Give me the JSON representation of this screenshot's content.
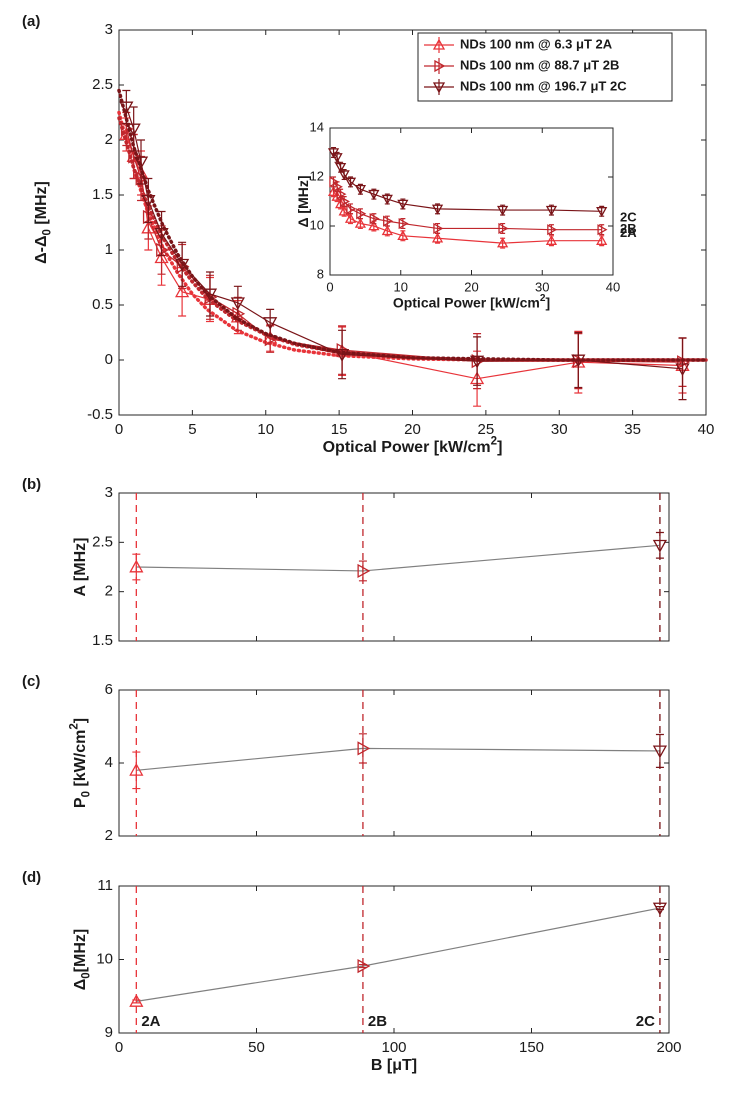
{
  "chart_data": [
    {
      "type": "line",
      "panel_label": "(a)",
      "xlabel": [
        {
          "text": "Optical Power [kW/cm"
        },
        {
          "text": "2",
          "sup": true
        },
        {
          "text": "]"
        }
      ],
      "ylabel": [
        {
          "text": "Δ-Δ"
        },
        {
          "text": "0",
          "sub": true
        },
        {
          "text": " [MHz]"
        }
      ],
      "xlim": [
        0,
        40
      ],
      "xticks": [
        0,
        5,
        10,
        15,
        20,
        25,
        30,
        35,
        40
      ],
      "ylim": [
        -0.5,
        3
      ],
      "yticks": [
        -0.5,
        0,
        0.5,
        1,
        1.5,
        2,
        2.5,
        3
      ],
      "legend": "upper right",
      "x": [
        0.5,
        1,
        1.5,
        2,
        2.9,
        4.3,
        6.2,
        8.1,
        10.3,
        15.2,
        24.4,
        31.3,
        38.4
      ],
      "fit_x": [
        0,
        1,
        2,
        3,
        4,
        5,
        6,
        8,
        10,
        12,
        15,
        20,
        25,
        30,
        35,
        40
      ],
      "series": [
        {
          "name": "NDs 100 nm @ 6.3 μT 2A",
          "color": "#e8343a",
          "marker": "^",
          "values": [
            2.05,
            1.85,
            1.7,
            1.2,
            0.93,
            0.62,
            0.55,
            0.39,
            0.2,
            0.08,
            -0.17,
            -0.02,
            -0.05
          ],
          "errors": [
            0.15,
            0.2,
            0.2,
            0.2,
            0.25,
            0.22,
            0.2,
            0.15,
            0.12,
            0.22,
            0.25,
            0.28,
            0.25
          ],
          "fit": [
            2.25,
            1.74,
            1.33,
            1.02,
            0.79,
            0.6,
            0.46,
            0.27,
            0.16,
            0.09,
            0.04,
            0.01,
            0,
            0,
            0,
            0
          ]
        },
        {
          "name": "NDs 100 nm @ 88.7 μT 2B",
          "color": "#c0272d",
          "marker": ">",
          "values": [
            2.1,
            1.85,
            1.65,
            1.3,
            1.0,
            0.85,
            0.57,
            0.42,
            0.19,
            0.09,
            -0.01,
            -0.01,
            -0.02
          ],
          "errors": [
            0.15,
            0.2,
            0.2,
            0.2,
            0.22,
            0.2,
            0.2,
            0.15,
            0.12,
            0.22,
            0.25,
            0.25,
            0.22
          ],
          "fit": [
            2.2,
            1.75,
            1.39,
            1.11,
            0.89,
            0.71,
            0.56,
            0.36,
            0.23,
            0.14,
            0.07,
            0.02,
            0,
            0,
            0,
            0
          ]
        },
        {
          "name": "NDs 100 nm @ 196.7 μT 2C",
          "color": "#7a1418",
          "marker": "v",
          "values": [
            2.3,
            2.1,
            1.8,
            1.45,
            1.15,
            0.87,
            0.6,
            0.52,
            0.34,
            0.05,
            -0.01,
            0.0,
            -0.08
          ],
          "errors": [
            0.15,
            0.2,
            0.2,
            0.2,
            0.2,
            0.2,
            0.2,
            0.15,
            0.12,
            0.22,
            0.22,
            0.25,
            0.28
          ],
          "fit": [
            2.45,
            1.94,
            1.54,
            1.22,
            0.96,
            0.76,
            0.6,
            0.38,
            0.24,
            0.15,
            0.07,
            0.02,
            0.01,
            0,
            0,
            0
          ]
        }
      ]
    },
    {
      "type": "line",
      "xlabel": [
        {
          "text": "Optical Power [kW/cm"
        },
        {
          "text": "2",
          "sup": true
        },
        {
          "text": "]"
        }
      ],
      "ylabel": [
        {
          "text": "Δ [MHz]"
        }
      ],
      "xlim": [
        0,
        40
      ],
      "xticks": [
        0,
        10,
        20,
        30,
        40
      ],
      "ylim": [
        8,
        14
      ],
      "yticks": [
        8,
        10,
        12,
        14
      ],
      "end_labels": true,
      "x": [
        0.5,
        1,
        1.5,
        2,
        2.9,
        4.3,
        6.2,
        8.1,
        10.3,
        15.2,
        24.4,
        31.3,
        38.4
      ],
      "series": [
        {
          "name": "2A",
          "color": "#e8343a",
          "marker": "^",
          "values": [
            11.4,
            11.2,
            10.9,
            10.6,
            10.3,
            10.1,
            10.0,
            9.8,
            9.6,
            9.5,
            9.3,
            9.4,
            9.4
          ],
          "errors": [
            0.2,
            0.2,
            0.2,
            0.2,
            0.2,
            0.2,
            0.2,
            0.2,
            0.2,
            0.2,
            0.2,
            0.2,
            0.2
          ]
        },
        {
          "name": "2B",
          "color": "#c0272d",
          "marker": ">",
          "values": [
            11.8,
            11.6,
            11.3,
            11.0,
            10.7,
            10.5,
            10.3,
            10.2,
            10.1,
            9.9,
            9.9,
            9.85,
            9.85
          ],
          "errors": [
            0.2,
            0.2,
            0.2,
            0.2,
            0.2,
            0.2,
            0.2,
            0.2,
            0.2,
            0.2,
            0.2,
            0.2,
            0.2
          ]
        },
        {
          "name": "2C",
          "color": "#7a1418",
          "marker": "v",
          "values": [
            13.0,
            12.8,
            12.4,
            12.1,
            11.8,
            11.5,
            11.3,
            11.1,
            10.9,
            10.7,
            10.65,
            10.65,
            10.6
          ],
          "errors": [
            0.2,
            0.2,
            0.2,
            0.2,
            0.2,
            0.2,
            0.2,
            0.2,
            0.2,
            0.2,
            0.2,
            0.2,
            0.2
          ]
        }
      ]
    },
    {
      "type": "line",
      "panel_label": "(b)",
      "ylabel": [
        {
          "text": "A [MHz]"
        }
      ],
      "xlim": [
        0,
        200
      ],
      "xticks": [
        0,
        50,
        100,
        150,
        200
      ],
      "xtick_labels": false,
      "ylim": [
        1.5,
        3
      ],
      "yticks": [
        1.5,
        2,
        2.5,
        3
      ],
      "vlines": true,
      "x": [
        6.3,
        88.7,
        196.7
      ],
      "series": [
        {
          "color": "#808080",
          "markers": [
            "^",
            ">",
            "v"
          ],
          "marker_colors": [
            "#e8343a",
            "#c0272d",
            "#7a1418"
          ],
          "values": [
            2.25,
            2.21,
            2.47
          ],
          "errors": [
            0.13,
            0.1,
            0.13
          ]
        }
      ]
    },
    {
      "type": "line",
      "panel_label": "(c)",
      "ylabel": [
        {
          "text": "P"
        },
        {
          "text": "0",
          "sub": true
        },
        {
          "text": " [kW/cm"
        },
        {
          "text": "2",
          "sup": true
        },
        {
          "text": "]"
        }
      ],
      "xlim": [
        0,
        200
      ],
      "xticks": [
        0,
        50,
        100,
        150,
        200
      ],
      "xtick_labels": false,
      "ylim": [
        2,
        6
      ],
      "yticks": [
        2,
        4,
        6
      ],
      "vlines": true,
      "x": [
        6.3,
        88.7,
        196.7
      ],
      "series": [
        {
          "color": "#808080",
          "markers": [
            "^",
            ">",
            "v"
          ],
          "marker_colors": [
            "#e8343a",
            "#c0272d",
            "#7a1418"
          ],
          "values": [
            3.8,
            4.4,
            4.33
          ],
          "errors": [
            0.5,
            0.4,
            0.45
          ]
        }
      ]
    },
    {
      "type": "line",
      "panel_label": "(d)",
      "xlabel": [
        {
          "text": "B [μT]"
        }
      ],
      "ylabel": [
        {
          "text": "Δ"
        },
        {
          "text": "0",
          "sub": true
        },
        {
          "text": "[MHz]"
        }
      ],
      "xlim": [
        0,
        200
      ],
      "xticks": [
        0,
        50,
        100,
        150,
        200
      ],
      "ylim": [
        9,
        11
      ],
      "yticks": [
        9,
        10,
        11
      ],
      "vlines": true,
      "x": [
        6.3,
        88.7,
        196.7
      ],
      "point_labels": [
        "2A",
        "2B",
        "2C"
      ],
      "series": [
        {
          "color": "#808080",
          "markers": [
            "^",
            ">",
            "v"
          ],
          "marker_colors": [
            "#e8343a",
            "#c0272d",
            "#7a1418"
          ],
          "values": [
            9.43,
            9.91,
            10.7
          ],
          "errors": [
            0.02,
            0.02,
            0.02
          ]
        }
      ]
    }
  ]
}
